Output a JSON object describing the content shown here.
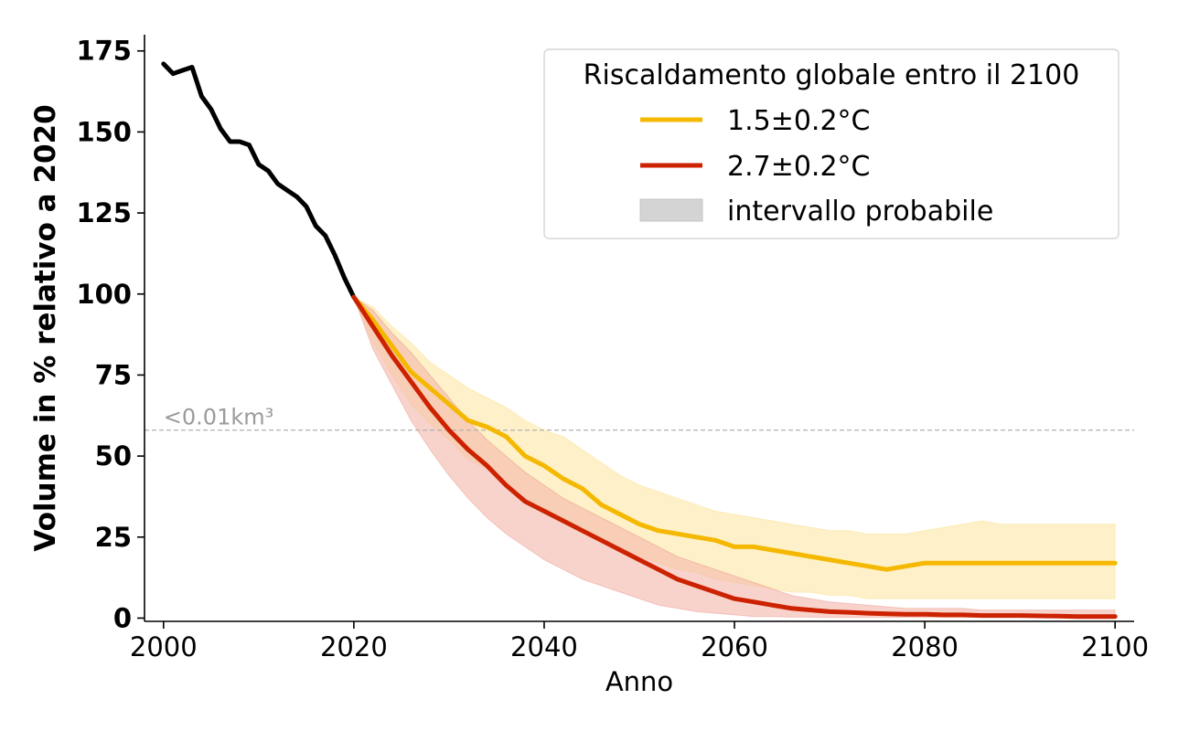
{
  "chart_data": {
    "type": "line",
    "xlabel": "Anno",
    "ylabel": "Volume in % relativo a 2020",
    "xlim": [
      1998,
      2102
    ],
    "ylim": [
      -1,
      180
    ],
    "xticks": [
      2000,
      2020,
      2040,
      2060,
      2080,
      2100
    ],
    "yticks": [
      0,
      25,
      50,
      75,
      100,
      125,
      150,
      175
    ],
    "grid": false,
    "legend": {
      "title": "Riscaldamento globale entro il 2100",
      "placement": "top-right",
      "band_label": "intervallo probabile"
    },
    "reference_line": {
      "y": 58,
      "label": "<0.01km³",
      "color": "#b0b0b0"
    },
    "observed": {
      "color": "#000000",
      "x": [
        2000,
        2001,
        2002,
        2003,
        2004,
        2005,
        2006,
        2007,
        2008,
        2009,
        2010,
        2011,
        2012,
        2013,
        2014,
        2015,
        2016,
        2017,
        2018,
        2019,
        2020
      ],
      "values": [
        171,
        168,
        169,
        170,
        161,
        157,
        151,
        147,
        147,
        146,
        140,
        138,
        134,
        132,
        130,
        127,
        121,
        118,
        112,
        105,
        99
      ]
    },
    "series": [
      {
        "name": "1.5±0.2°C",
        "color": "#f5b800",
        "band_color": "#fde9a8",
        "x": [
          2020,
          2022,
          2024,
          2026,
          2028,
          2030,
          2032,
          2034,
          2036,
          2038,
          2040,
          2042,
          2044,
          2046,
          2048,
          2050,
          2052,
          2054,
          2056,
          2058,
          2060,
          2062,
          2064,
          2066,
          2068,
          2070,
          2072,
          2074,
          2076,
          2078,
          2080,
          2082,
          2084,
          2086,
          2088,
          2090,
          2092,
          2094,
          2096,
          2098,
          2100
        ],
        "values": [
          99,
          92,
          84,
          76,
          71,
          66,
          61,
          59,
          56,
          50,
          47,
          43,
          40,
          35,
          32,
          29,
          27,
          26,
          25,
          24,
          22,
          22,
          21,
          20,
          19,
          18,
          17,
          16,
          15,
          16,
          17,
          17,
          17,
          17,
          17,
          17,
          17,
          17,
          17,
          17,
          17
        ],
        "lower": [
          99,
          85,
          75,
          66,
          60,
          55,
          49,
          46,
          41,
          37,
          34,
          31,
          28,
          25,
          22,
          19,
          17,
          15,
          14,
          12,
          11,
          10,
          9,
          8,
          8,
          7,
          7,
          6,
          6,
          6,
          6,
          6,
          6,
          6,
          6,
          6,
          6,
          6,
          6,
          6,
          6
        ],
        "upper": [
          99,
          96,
          90,
          85,
          79,
          75,
          71,
          68,
          65,
          61,
          58,
          56,
          52,
          48,
          44,
          41,
          39,
          37,
          35,
          33,
          32,
          31,
          30,
          29,
          28,
          27,
          27,
          26,
          26,
          26,
          27,
          28,
          29,
          30,
          29,
          29,
          29,
          29,
          29,
          29,
          29
        ]
      },
      {
        "name": "2.7±0.2°C",
        "color": "#cc2200",
        "band_color": "#f3b8ad",
        "x": [
          2020,
          2022,
          2024,
          2026,
          2028,
          2030,
          2032,
          2034,
          2036,
          2038,
          2040,
          2042,
          2044,
          2046,
          2048,
          2050,
          2052,
          2054,
          2056,
          2058,
          2060,
          2062,
          2064,
          2066,
          2068,
          2070,
          2072,
          2074,
          2076,
          2078,
          2080,
          2082,
          2084,
          2086,
          2088,
          2090,
          2092,
          2094,
          2096,
          2098,
          2100
        ],
        "values": [
          99,
          90,
          81,
          73,
          65,
          58,
          52,
          47,
          41,
          36,
          33,
          30,
          27,
          24,
          21,
          18,
          15,
          12,
          10,
          8,
          6,
          5,
          4,
          3,
          2.5,
          2,
          1.8,
          1.5,
          1.3,
          1.2,
          1.2,
          1,
          1,
          0.8,
          0.8,
          0.8,
          0.7,
          0.6,
          0.5,
          0.5,
          0.5
        ],
        "lower": [
          99,
          83,
          72,
          61,
          52,
          44,
          37,
          31,
          26,
          22,
          18,
          15,
          12,
          10,
          8,
          6,
          4,
          3,
          2,
          1.5,
          1,
          0.5,
          0.5,
          0.3,
          0.3,
          0.2,
          0.2,
          0.2,
          0.2,
          0.2,
          0.2,
          0.2,
          0.2,
          0.2,
          0.2,
          0.2,
          0.2,
          0.2,
          0.2,
          0.2,
          0.2
        ],
        "upper": [
          99,
          95,
          88,
          82,
          75,
          68,
          61,
          55,
          50,
          45,
          41,
          37,
          34,
          31,
          28,
          25,
          22,
          19,
          17,
          15,
          13,
          11,
          9,
          7,
          6,
          5,
          4.5,
          4,
          3.5,
          3,
          3,
          3,
          3,
          2.5,
          2.5,
          2.5,
          2.5,
          2.5,
          2.5,
          2.5,
          2.5
        ]
      }
    ]
  }
}
